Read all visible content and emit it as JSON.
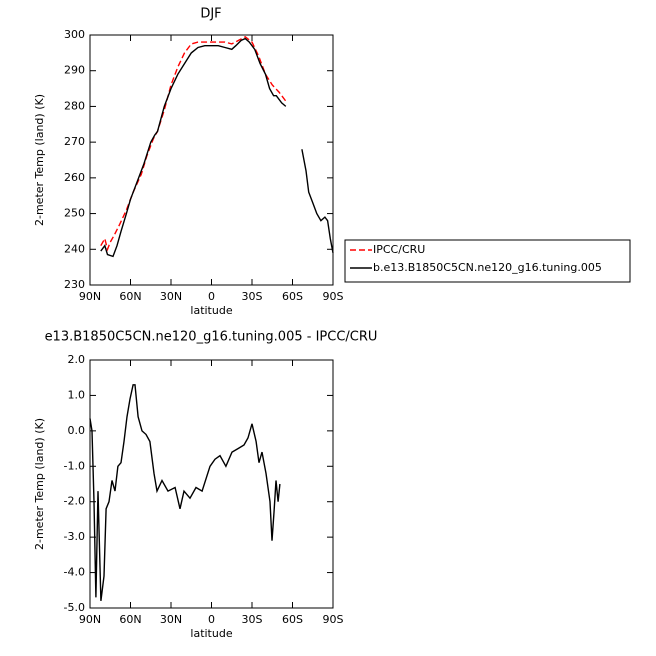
{
  "chart_data": [
    {
      "type": "line",
      "title": "DJF",
      "xlabel": "latitude",
      "ylabel": "2-meter Temp (land) (K)",
      "xlim": [
        90,
        -90
      ],
      "xticks": [
        {
          "value": 90,
          "label": "90N"
        },
        {
          "value": 60,
          "label": "60N"
        },
        {
          "value": 30,
          "label": "30N"
        },
        0,
        {
          "value": -30,
          "label": "30S"
        },
        {
          "value": -60,
          "label": "60S"
        },
        {
          "value": -90,
          "label": "90S"
        }
      ],
      "ylim": [
        230,
        300
      ],
      "yticks": [
        230,
        240,
        250,
        260,
        270,
        280,
        290,
        300
      ],
      "series": [
        {
          "name": "IPCC/CRU",
          "color": "#ff0000",
          "dashed": true,
          "x": [
            82,
            79,
            77,
            75,
            72,
            68,
            63,
            58,
            52,
            48,
            43,
            40,
            35,
            30,
            25,
            20,
            15,
            10,
            5,
            0,
            -5,
            -10,
            -15,
            -20,
            -25,
            -30,
            -35,
            -40,
            -45,
            -50,
            -55
          ],
          "values": [
            241,
            243,
            240,
            242,
            244,
            247,
            251,
            256,
            261,
            266,
            271,
            273,
            279,
            286,
            291,
            295,
            297.5,
            298,
            298,
            298,
            298,
            298,
            297.5,
            298.5,
            299.5,
            298,
            294,
            289,
            286,
            284,
            281.5
          ]
        },
        {
          "name": "b.e13.B1850C5CN.ne120_g16.tuning.005",
          "color": "#000000",
          "dashed": false,
          "x": [
            82,
            79,
            77,
            73,
            70,
            67,
            63,
            60,
            55,
            50,
            45,
            42,
            40,
            35,
            30,
            25,
            20,
            15,
            10,
            5,
            0,
            -5,
            -10,
            -15,
            -18,
            -22,
            -25,
            -28,
            -32,
            -36,
            -40,
            -43,
            -46,
            -48,
            -50,
            -52,
            -55,
            -60,
            -67,
            -70,
            -72,
            -75,
            -78,
            -81,
            -84,
            -86,
            -88,
            -90
          ],
          "values": [
            239.5,
            241,
            238.5,
            238,
            241,
            245,
            250,
            254,
            259,
            264,
            270,
            272,
            273,
            280,
            285,
            289,
            292,
            295,
            296.5,
            297,
            297,
            297,
            296.5,
            296,
            297,
            298.5,
            299,
            298,
            296,
            292,
            289,
            285,
            283,
            283,
            282,
            281,
            280,
            null,
            268,
            262,
            256,
            253,
            250,
            248,
            249,
            248,
            243,
            239
          ]
        }
      ]
    },
    {
      "type": "line",
      "title": "e13.B1850C5CN.ne120_g16.tuning.005 - IPCC/CRU",
      "xlabel": "latitude",
      "ylabel": "2-meter Temp (land) (K)",
      "xlim": [
        90,
        -90
      ],
      "xticks": [
        {
          "value": 90,
          "label": "90N"
        },
        {
          "value": 60,
          "label": "60N"
        },
        {
          "value": 30,
          "label": "30N"
        },
        0,
        {
          "value": -30,
          "label": "30S"
        },
        {
          "value": -60,
          "label": "60S"
        },
        {
          "value": -90,
          "label": "90S"
        }
      ],
      "ylim": [
        -5,
        2
      ],
      "yticks": [
        {
          "value": -5,
          "label": "-5.0"
        },
        {
          "value": -4,
          "label": "-4.0"
        },
        {
          "value": -3,
          "label": "-3.0"
        },
        {
          "value": -2,
          "label": "-2.0"
        },
        {
          "value": -1,
          "label": "-1.0"
        },
        {
          "value": 0,
          "label": "0.0"
        },
        {
          "value": 1,
          "label": "1.0"
        },
        {
          "value": 2,
          "label": "2.0"
        }
      ],
      "series": [
        {
          "color": "#000000",
          "dashed": false,
          "x": [
            90,
            88.5,
            87,
            85.6,
            84.1,
            81.9,
            79.6,
            78.1,
            75.9,
            73.7,
            71.5,
            69.3,
            67,
            64.8,
            62.6,
            60.4,
            58.1,
            56.7,
            54.4,
            51.5,
            48.5,
            45.6,
            42.6,
            40.4,
            36.7,
            32.2,
            27,
            23.3,
            20.4,
            15.9,
            11.5,
            7,
            1.1,
            -2.6,
            -6.3,
            -10.7,
            -15.2,
            -19.6,
            -24.1,
            -27,
            -30,
            -33,
            -35.2,
            -37.4,
            -40.4,
            -43.3,
            -44.8,
            -46.3,
            -47.8,
            -49.3,
            -50.7
          ],
          "values": [
            0.35,
            0,
            -2,
            -4.7,
            -1.7,
            -4.8,
            -4.1,
            -2.2,
            -2,
            -1.4,
            -1.7,
            -1,
            -0.9,
            -0.3,
            0.4,
            0.9,
            1.3,
            1.3,
            0.4,
            0,
            -0.1,
            -0.3,
            -1.2,
            -1.7,
            -1.4,
            -1.7,
            -1.6,
            -2.2,
            -1.7,
            -1.9,
            -1.6,
            -1.7,
            -1,
            -0.8,
            -0.7,
            -1,
            -0.6,
            -0.5,
            -0.4,
            -0.2,
            0.2,
            -0.3,
            -0.9,
            -0.6,
            -1.2,
            -2,
            -3.1,
            -2.3,
            -1.4,
            -2,
            -1.5
          ]
        }
      ]
    }
  ]
}
